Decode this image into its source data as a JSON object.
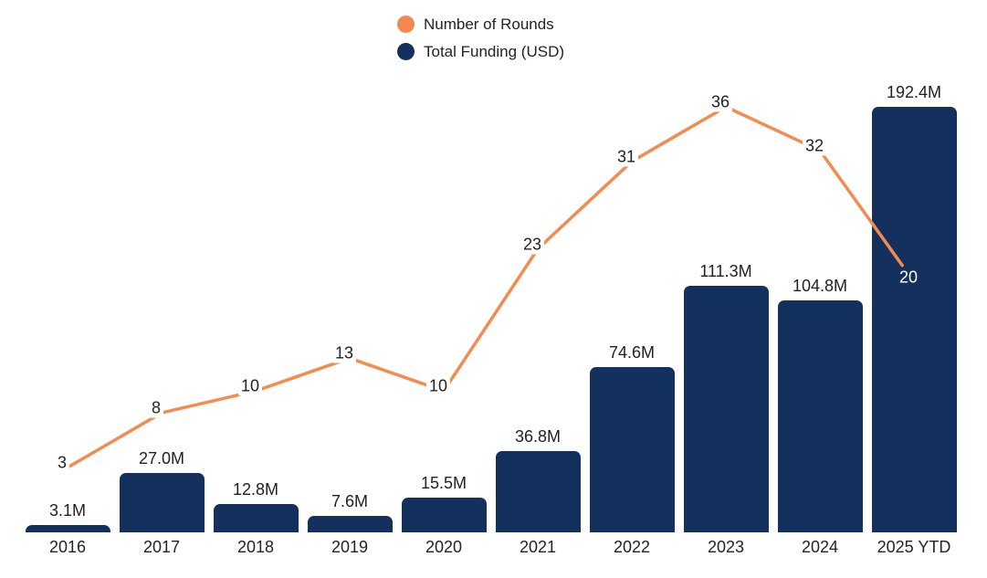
{
  "legend": {
    "items": [
      {
        "label": "Number of Rounds",
        "color": "#F6874F"
      },
      {
        "label": "Total Funding (USD)",
        "color": "#14315E"
      }
    ]
  },
  "chart_data": {
    "type": "combo",
    "title": "",
    "categories": [
      "2016",
      "2017",
      "2018",
      "2019",
      "2020",
      "2021",
      "2022",
      "2023",
      "2024",
      "2025 YTD"
    ],
    "series": [
      {
        "name": "Number of Rounds",
        "type": "line",
        "color": "#F28C51",
        "values": [
          3,
          8,
          10,
          13,
          10,
          23,
          31,
          36,
          32,
          20
        ]
      },
      {
        "name": "Total Funding (USD)",
        "type": "bar",
        "color": "#14315E",
        "unit": "USD millions",
        "values": [
          3.1,
          27.0,
          12.8,
          7.6,
          15.5,
          36.8,
          74.6,
          111.3,
          104.8,
          192.4
        ],
        "value_labels": [
          "3.1M",
          "27.0M",
          "12.8M",
          "7.6M",
          "15.5M",
          "36.8M",
          "74.6M",
          "111.3M",
          "104.8M",
          "192.4M"
        ]
      }
    ],
    "legend_position": "top-center",
    "grid": false,
    "axes_visible": false,
    "background_color": "#FFFFFF",
    "label_color": "#222222",
    "last_line_label_color": "#FCFBF5"
  }
}
